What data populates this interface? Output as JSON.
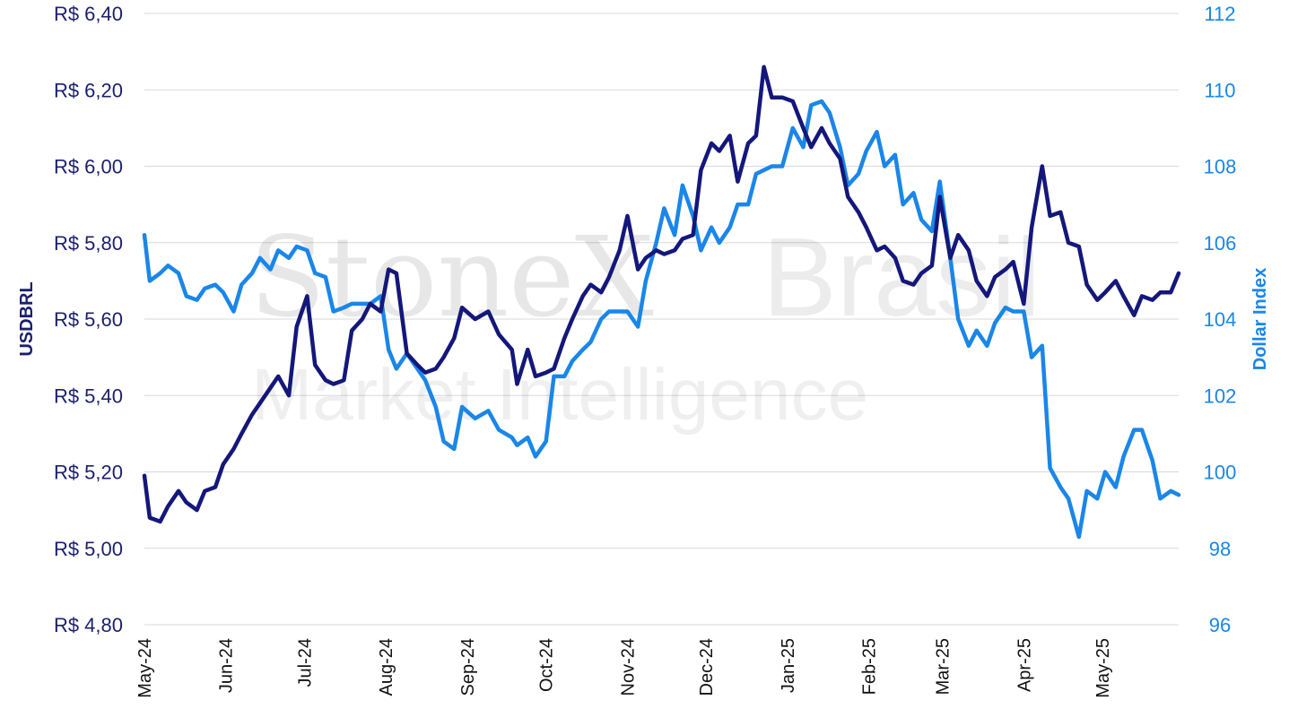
{
  "watermark": {
    "brand": "StoneX",
    "region": "Brasil",
    "unit": "Market Intelligence"
  },
  "chart_data": {
    "type": "line",
    "title": "",
    "ylabel_left": "USDBRL",
    "ylabel_right": "Dollar Index",
    "ylim_left": [
      4.8,
      6.4
    ],
    "ylim_right": [
      96,
      112
    ],
    "yticks_left": [
      "R$ 6,40",
      "R$ 6,20",
      "R$ 6,00",
      "R$ 5,80",
      "R$ 5,60",
      "R$ 5,40",
      "R$ 5,20",
      "R$ 5,00",
      "R$ 4,80"
    ],
    "yticks_right": [
      "112",
      "110",
      "108",
      "106",
      "104",
      "102",
      "100",
      "98",
      "96"
    ],
    "xticks": [
      "May-24",
      "Jun-24",
      "Jul-24",
      "Aug-24",
      "Sep-24",
      "Oct-24",
      "Nov-24",
      "Dec-24",
      "Jan-25",
      "Feb-25",
      "Mar-25",
      "Apr-25",
      "May-25"
    ],
    "xlim": [
      "2024-05-01",
      "2025-05-30"
    ],
    "grid": "horizontal",
    "colors": {
      "usdbrl": "#14177a",
      "dxy": "#1a86e8"
    },
    "series": [
      {
        "name": "USDBRL",
        "axis": "left",
        "points": [
          [
            "2024-05-01",
            5.19
          ],
          [
            "2024-05-03",
            5.08
          ],
          [
            "2024-05-07",
            5.07
          ],
          [
            "2024-05-10",
            5.11
          ],
          [
            "2024-05-14",
            5.15
          ],
          [
            "2024-05-17",
            5.12
          ],
          [
            "2024-05-21",
            5.1
          ],
          [
            "2024-05-24",
            5.15
          ],
          [
            "2024-05-28",
            5.16
          ],
          [
            "2024-05-31",
            5.22
          ],
          [
            "2024-06-04",
            5.26
          ],
          [
            "2024-06-07",
            5.3
          ],
          [
            "2024-06-11",
            5.35
          ],
          [
            "2024-06-14",
            5.38
          ],
          [
            "2024-06-18",
            5.42
          ],
          [
            "2024-06-21",
            5.45
          ],
          [
            "2024-06-25",
            5.4
          ],
          [
            "2024-06-28",
            5.58
          ],
          [
            "2024-07-02",
            5.66
          ],
          [
            "2024-07-05",
            5.48
          ],
          [
            "2024-07-09",
            5.44
          ],
          [
            "2024-07-12",
            5.43
          ],
          [
            "2024-07-16",
            5.44
          ],
          [
            "2024-07-19",
            5.57
          ],
          [
            "2024-07-23",
            5.6
          ],
          [
            "2024-07-26",
            5.64
          ],
          [
            "2024-07-30",
            5.62
          ],
          [
            "2024-08-02",
            5.73
          ],
          [
            "2024-08-05",
            5.72
          ],
          [
            "2024-08-09",
            5.51
          ],
          [
            "2024-08-13",
            5.48
          ],
          [
            "2024-08-16",
            5.46
          ],
          [
            "2024-08-20",
            5.47
          ],
          [
            "2024-08-23",
            5.5
          ],
          [
            "2024-08-27",
            5.55
          ],
          [
            "2024-08-30",
            5.63
          ],
          [
            "2024-09-04",
            5.6
          ],
          [
            "2024-09-09",
            5.62
          ],
          [
            "2024-09-13",
            5.56
          ],
          [
            "2024-09-18",
            5.52
          ],
          [
            "2024-09-20",
            5.43
          ],
          [
            "2024-09-24",
            5.52
          ],
          [
            "2024-09-27",
            5.45
          ],
          [
            "2024-10-01",
            5.46
          ],
          [
            "2024-10-04",
            5.47
          ],
          [
            "2024-10-08",
            5.55
          ],
          [
            "2024-10-11",
            5.6
          ],
          [
            "2024-10-15",
            5.66
          ],
          [
            "2024-10-18",
            5.69
          ],
          [
            "2024-10-22",
            5.67
          ],
          [
            "2024-10-25",
            5.71
          ],
          [
            "2024-10-29",
            5.78
          ],
          [
            "2024-11-01",
            5.87
          ],
          [
            "2024-11-05",
            5.73
          ],
          [
            "2024-11-08",
            5.76
          ],
          [
            "2024-11-12",
            5.78
          ],
          [
            "2024-11-15",
            5.77
          ],
          [
            "2024-11-19",
            5.78
          ],
          [
            "2024-11-22",
            5.81
          ],
          [
            "2024-11-26",
            5.82
          ],
          [
            "2024-11-29",
            5.99
          ],
          [
            "2024-12-03",
            6.06
          ],
          [
            "2024-12-06",
            6.04
          ],
          [
            "2024-12-10",
            6.08
          ],
          [
            "2024-12-13",
            5.96
          ],
          [
            "2024-12-17",
            6.06
          ],
          [
            "2024-12-20",
            6.08
          ],
          [
            "2024-12-23",
            6.26
          ],
          [
            "2024-12-26",
            6.18
          ],
          [
            "2024-12-30",
            6.18
          ],
          [
            "2025-01-03",
            6.17
          ],
          [
            "2025-01-07",
            6.1
          ],
          [
            "2025-01-10",
            6.05
          ],
          [
            "2025-01-14",
            6.1
          ],
          [
            "2025-01-17",
            6.06
          ],
          [
            "2025-01-21",
            6.02
          ],
          [
            "2025-01-24",
            5.92
          ],
          [
            "2025-01-28",
            5.88
          ],
          [
            "2025-01-31",
            5.84
          ],
          [
            "2025-02-04",
            5.78
          ],
          [
            "2025-02-07",
            5.79
          ],
          [
            "2025-02-11",
            5.76
          ],
          [
            "2025-02-14",
            5.7
          ],
          [
            "2025-02-18",
            5.69
          ],
          [
            "2025-02-21",
            5.72
          ],
          [
            "2025-02-25",
            5.74
          ],
          [
            "2025-02-28",
            5.92
          ],
          [
            "2025-03-04",
            5.76
          ],
          [
            "2025-03-07",
            5.82
          ],
          [
            "2025-03-11",
            5.78
          ],
          [
            "2025-03-14",
            5.7
          ],
          [
            "2025-03-18",
            5.66
          ],
          [
            "2025-03-21",
            5.71
          ],
          [
            "2025-03-25",
            5.73
          ],
          [
            "2025-03-28",
            5.75
          ],
          [
            "2025-04-01",
            5.64
          ],
          [
            "2025-04-04",
            5.84
          ],
          [
            "2025-04-08",
            6.0
          ],
          [
            "2025-04-11",
            5.87
          ],
          [
            "2025-04-15",
            5.88
          ],
          [
            "2025-04-18",
            5.8
          ],
          [
            "2025-04-22",
            5.79
          ],
          [
            "2025-04-25",
            5.69
          ],
          [
            "2025-04-29",
            5.65
          ],
          [
            "2025-05-02",
            5.67
          ],
          [
            "2025-05-06",
            5.7
          ],
          [
            "2025-05-09",
            5.66
          ],
          [
            "2025-05-13",
            5.61
          ],
          [
            "2025-05-16",
            5.66
          ],
          [
            "2025-05-20",
            5.65
          ],
          [
            "2025-05-23",
            5.67
          ],
          [
            "2025-05-27",
            5.67
          ],
          [
            "2025-05-30",
            5.72
          ]
        ]
      },
      {
        "name": "Dollar Index",
        "axis": "right",
        "points": [
          [
            "2024-05-01",
            106.2
          ],
          [
            "2024-05-03",
            105.0
          ],
          [
            "2024-05-07",
            105.2
          ],
          [
            "2024-05-10",
            105.4
          ],
          [
            "2024-05-14",
            105.2
          ],
          [
            "2024-05-17",
            104.6
          ],
          [
            "2024-05-21",
            104.5
          ],
          [
            "2024-05-24",
            104.8
          ],
          [
            "2024-05-28",
            104.9
          ],
          [
            "2024-05-31",
            104.7
          ],
          [
            "2024-06-04",
            104.2
          ],
          [
            "2024-06-07",
            104.9
          ],
          [
            "2024-06-11",
            105.2
          ],
          [
            "2024-06-14",
            105.6
          ],
          [
            "2024-06-18",
            105.3
          ],
          [
            "2024-06-21",
            105.8
          ],
          [
            "2024-06-25",
            105.6
          ],
          [
            "2024-06-28",
            105.9
          ],
          [
            "2024-07-02",
            105.8
          ],
          [
            "2024-07-05",
            105.2
          ],
          [
            "2024-07-09",
            105.1
          ],
          [
            "2024-07-12",
            104.2
          ],
          [
            "2024-07-16",
            104.3
          ],
          [
            "2024-07-19",
            104.4
          ],
          [
            "2024-07-23",
            104.4
          ],
          [
            "2024-07-26",
            104.4
          ],
          [
            "2024-07-30",
            104.6
          ],
          [
            "2024-08-02",
            103.2
          ],
          [
            "2024-08-05",
            102.7
          ],
          [
            "2024-08-09",
            103.1
          ],
          [
            "2024-08-13",
            102.7
          ],
          [
            "2024-08-16",
            102.4
          ],
          [
            "2024-08-20",
            101.7
          ],
          [
            "2024-08-23",
            100.8
          ],
          [
            "2024-08-27",
            100.6
          ],
          [
            "2024-08-30",
            101.7
          ],
          [
            "2024-09-04",
            101.4
          ],
          [
            "2024-09-09",
            101.6
          ],
          [
            "2024-09-13",
            101.1
          ],
          [
            "2024-09-18",
            100.9
          ],
          [
            "2024-09-20",
            100.7
          ],
          [
            "2024-09-24",
            100.9
          ],
          [
            "2024-09-27",
            100.4
          ],
          [
            "2024-10-01",
            100.8
          ],
          [
            "2024-10-04",
            102.5
          ],
          [
            "2024-10-08",
            102.5
          ],
          [
            "2024-10-11",
            102.9
          ],
          [
            "2024-10-15",
            103.2
          ],
          [
            "2024-10-18",
            103.4
          ],
          [
            "2024-10-22",
            104.0
          ],
          [
            "2024-10-25",
            104.2
          ],
          [
            "2024-10-29",
            104.2
          ],
          [
            "2024-11-01",
            104.2
          ],
          [
            "2024-11-05",
            103.8
          ],
          [
            "2024-11-08",
            105.0
          ],
          [
            "2024-11-12",
            106.0
          ],
          [
            "2024-11-15",
            106.9
          ],
          [
            "2024-11-19",
            106.2
          ],
          [
            "2024-11-22",
            107.5
          ],
          [
            "2024-11-26",
            106.7
          ],
          [
            "2024-11-29",
            105.8
          ],
          [
            "2024-12-03",
            106.4
          ],
          [
            "2024-12-06",
            106.0
          ],
          [
            "2024-12-10",
            106.4
          ],
          [
            "2024-12-13",
            107.0
          ],
          [
            "2024-12-17",
            107.0
          ],
          [
            "2024-12-20",
            107.8
          ],
          [
            "2024-12-23",
            107.9
          ],
          [
            "2024-12-26",
            108.0
          ],
          [
            "2024-12-30",
            108.0
          ],
          [
            "2025-01-03",
            109.0
          ],
          [
            "2025-01-07",
            108.5
          ],
          [
            "2025-01-10",
            109.6
          ],
          [
            "2025-01-14",
            109.7
          ],
          [
            "2025-01-17",
            109.4
          ],
          [
            "2025-01-21",
            108.5
          ],
          [
            "2025-01-24",
            107.5
          ],
          [
            "2025-01-28",
            107.8
          ],
          [
            "2025-01-31",
            108.4
          ],
          [
            "2025-02-04",
            108.9
          ],
          [
            "2025-02-07",
            108.0
          ],
          [
            "2025-02-11",
            108.3
          ],
          [
            "2025-02-14",
            107.0
          ],
          [
            "2025-02-18",
            107.3
          ],
          [
            "2025-02-21",
            106.6
          ],
          [
            "2025-02-25",
            106.3
          ],
          [
            "2025-02-28",
            107.6
          ],
          [
            "2025-03-04",
            105.6
          ],
          [
            "2025-03-07",
            104.0
          ],
          [
            "2025-03-11",
            103.3
          ],
          [
            "2025-03-14",
            103.7
          ],
          [
            "2025-03-18",
            103.3
          ],
          [
            "2025-03-21",
            103.9
          ],
          [
            "2025-03-25",
            104.3
          ],
          [
            "2025-03-28",
            104.2
          ],
          [
            "2025-04-01",
            104.2
          ],
          [
            "2025-04-04",
            103.0
          ],
          [
            "2025-04-08",
            103.3
          ],
          [
            "2025-04-11",
            100.1
          ],
          [
            "2025-04-15",
            99.6
          ],
          [
            "2025-04-18",
            99.3
          ],
          [
            "2025-04-22",
            98.3
          ],
          [
            "2025-04-25",
            99.5
          ],
          [
            "2025-04-29",
            99.3
          ],
          [
            "2025-05-02",
            100.0
          ],
          [
            "2025-05-06",
            99.6
          ],
          [
            "2025-05-09",
            100.4
          ],
          [
            "2025-05-13",
            101.1
          ],
          [
            "2025-05-16",
            101.1
          ],
          [
            "2025-05-20",
            100.3
          ],
          [
            "2025-05-23",
            99.3
          ],
          [
            "2025-05-27",
            99.5
          ],
          [
            "2025-05-30",
            99.4
          ]
        ]
      }
    ]
  }
}
